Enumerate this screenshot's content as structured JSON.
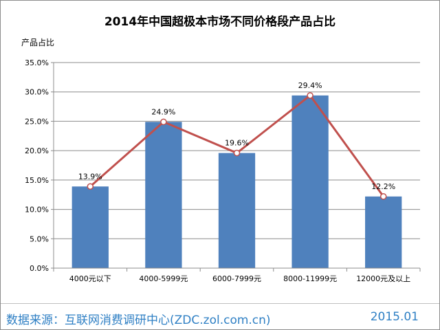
{
  "chart_data": {
    "type": "bar",
    "title": "2014年中国超极本市场不同价格段产品占比",
    "ylabel": "产品占比",
    "categories": [
      "4000元以下",
      "4000-5999元",
      "6000-7999元",
      "8000-11999元",
      "12000元及以上"
    ],
    "values": [
      13.9,
      24.9,
      19.6,
      29.4,
      12.2
    ],
    "data_labels": [
      "13.9%",
      "24.9%",
      "19.6%",
      "29.4%",
      "12.2%"
    ],
    "overlay_line": true,
    "ylim": [
      0,
      35
    ],
    "yticks": [
      "0.0%",
      "5.0%",
      "10.0%",
      "15.0%",
      "20.0%",
      "25.0%",
      "30.0%",
      "35.0%"
    ],
    "grid": true,
    "colors": {
      "bar": "#4f81bd",
      "line": "#c0504d",
      "marker_fill": "#ffffff"
    }
  },
  "watermark": {
    "logo": "ZDC",
    "org": "互联网消费调研中心",
    "url": "zdc.zol.com.cn"
  },
  "footer": {
    "source": "数据来源：互联网消费调研中心(ZDC.zol.com.cn)",
    "date": "2015.01"
  }
}
